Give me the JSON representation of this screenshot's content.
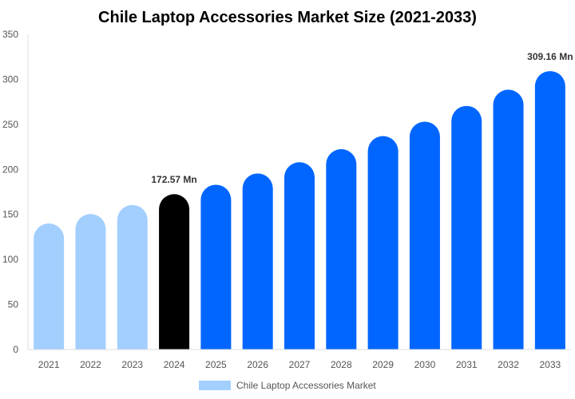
{
  "chart_data": {
    "type": "bar",
    "title": "Chile Laptop Accessories Market Size (2021-2033)",
    "categories": [
      "2021",
      "2022",
      "2023",
      "2024",
      "2025",
      "2026",
      "2027",
      "2028",
      "2029",
      "2030",
      "2031",
      "2032",
      "2033"
    ],
    "series": [
      {
        "name": "Chile Laptop Accessories Market",
        "values": [
          140,
          150.5,
          160.5,
          172.57,
          183,
          195.5,
          208,
          222.5,
          237,
          253,
          270.5,
          288.5,
          309.16
        ]
      }
    ],
    "data_labels": [
      {
        "category": "2024",
        "text": "172.57 Mn"
      },
      {
        "category": "2033",
        "text": "309.16 Mn"
      }
    ],
    "ylim": [
      0,
      350
    ],
    "yticks": [
      0,
      50,
      100,
      150,
      200,
      250,
      300,
      350
    ],
    "grid": false,
    "legend": "bottom",
    "colors": {
      "historical": "#a3cfff",
      "base_year": "#000000",
      "forecast": "#0066ff"
    }
  }
}
